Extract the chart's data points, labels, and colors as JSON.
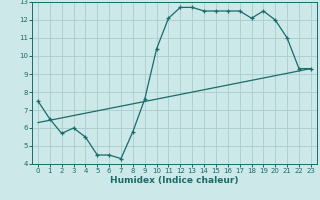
{
  "title": "",
  "xlabel": "Humidex (Indice chaleur)",
  "bg_color": "#cce8e8",
  "grid_color": "#aacccc",
  "line_color": "#1a6b6b",
  "xlim": [
    -0.5,
    23.5
  ],
  "ylim": [
    4,
    13
  ],
  "xticks": [
    0,
    1,
    2,
    3,
    4,
    5,
    6,
    7,
    8,
    9,
    10,
    11,
    12,
    13,
    14,
    15,
    16,
    17,
    18,
    19,
    20,
    21,
    22,
    23
  ],
  "yticks": [
    4,
    5,
    6,
    7,
    8,
    9,
    10,
    11,
    12,
    13
  ],
  "curve1_x": [
    0,
    1,
    2,
    3,
    4,
    5,
    6,
    7,
    8,
    9,
    10,
    11,
    12,
    13,
    14,
    15,
    16,
    17,
    18,
    19,
    20,
    21,
    22,
    23
  ],
  "curve1_y": [
    7.5,
    6.5,
    5.7,
    6.0,
    5.5,
    4.5,
    4.5,
    4.3,
    5.8,
    7.6,
    10.4,
    12.1,
    12.7,
    12.7,
    12.5,
    12.5,
    12.5,
    12.5,
    12.1,
    12.5,
    12.0,
    11.0,
    9.3,
    9.3
  ],
  "curve2_x": [
    0,
    23
  ],
  "curve2_y": [
    6.3,
    9.3
  ],
  "xlabel_fontsize": 6.5,
  "tick_fontsize": 5.0
}
